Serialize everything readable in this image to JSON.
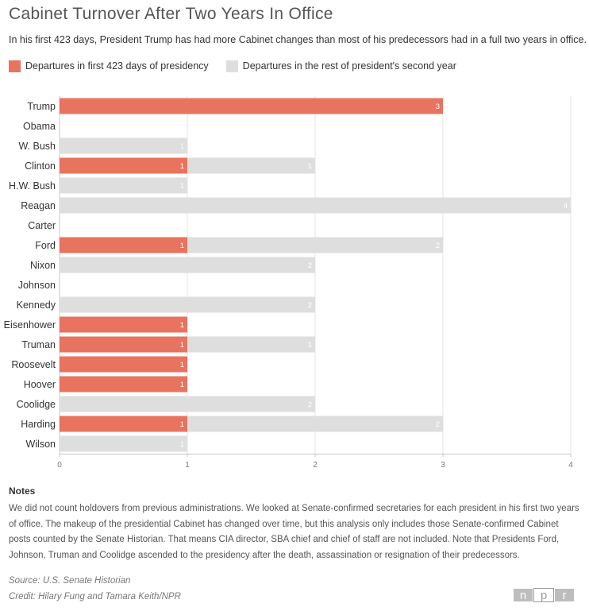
{
  "title": "Cabinet Turnover After Two Years In Office",
  "subtitle": "In his first 423 days, President Trump has had more Cabinet changes than most of his predecessors had in a full two years in office.",
  "legend": {
    "first": "Departures in first 423 days of presidency",
    "rest": "Departures in the rest of president's second year"
  },
  "colors": {
    "first": "#e8735e",
    "rest": "#dedede",
    "grid": "#e5e5e5",
    "axis": "#c8c8c8"
  },
  "chart_data": {
    "type": "bar",
    "orientation": "horizontal",
    "stacked": true,
    "categories": [
      "Trump",
      "Obama",
      "W. Bush",
      "Clinton",
      "H.W. Bush",
      "Reagan",
      "Carter",
      "Ford",
      "Nixon",
      "Johnson",
      "Kennedy",
      "Eisenhower",
      "Truman",
      "Roosevelt",
      "Hoover",
      "Coolidge",
      "Harding",
      "Wilson"
    ],
    "series": [
      {
        "name": "Departures in first 423 days of presidency",
        "values": [
          3,
          0,
          0,
          1,
          0,
          0,
          0,
          1,
          0,
          0,
          0,
          1,
          1,
          1,
          1,
          0,
          1,
          0
        ]
      },
      {
        "name": "Departures in the rest of president's second year",
        "values": [
          0,
          0,
          1,
          1,
          1,
          4,
          0,
          2,
          2,
          0,
          2,
          0,
          1,
          0,
          0,
          2,
          2,
          1
        ]
      }
    ],
    "data_labels": [
      [
        "3",
        "",
        "",
        "1",
        "",
        "",
        "",
        "1",
        "",
        "",
        "",
        "1",
        "1",
        "1",
        "1",
        "",
        "1",
        ""
      ],
      [
        "",
        "",
        "1",
        "1",
        "1",
        "4",
        "",
        "2",
        "2",
        "",
        "2",
        "",
        "1",
        "",
        "",
        "2",
        "2",
        "1"
      ]
    ],
    "xlim": [
      0,
      4
    ],
    "xticks": [
      "0",
      "1",
      "2",
      "3",
      "4"
    ],
    "grid": true
  },
  "notes": {
    "heading": "Notes",
    "text": "We did not count holdovers from previous administrations. We looked at Senate-confirmed secretaries for each president in his first two years of office. The makeup of the presidential Cabinet has changed over time, but this analysis only includes those Senate-confirmed Cabinet posts counted by the Senate Historian. That means CIA director, SBA chief and chief of staff are not included. Note that Presidents Ford, Johnson, Truman and Coolidge ascended to the presidency after the death, assassination or resignation of their predecessors."
  },
  "source": "Source: U.S. Senate Historian",
  "credit": "Credit: Hilary Fung and Tamara Keith/NPR",
  "logo": {
    "letters": [
      "n",
      "p",
      "r"
    ]
  }
}
